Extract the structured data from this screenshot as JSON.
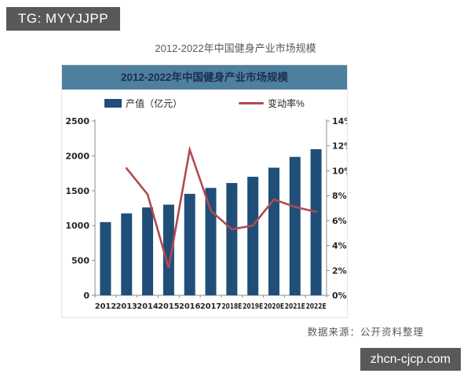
{
  "badge": {
    "label": "TG: MYYJJPP"
  },
  "page_title": "2012-2022年中国健身产业市场规模",
  "chart": {
    "header": "2012-2022年中国健身产业市场规模",
    "legend": [
      {
        "label": "产值（亿元）",
        "type": "bar"
      },
      {
        "label": "变动率%",
        "type": "line"
      }
    ]
  },
  "source_note": "数据来源：公开资料整理",
  "watermark": "zhcn-cjcp.com",
  "colors": {
    "bar": "#1f4e79",
    "line": "#b04a4e",
    "banner_bg": "#4e7f9e",
    "banner_text": "#1c2f4e",
    "badge_bg": "#58595b",
    "axis": "#8c8c8c"
  },
  "chart_data": {
    "type": "bar",
    "title": "2012-2022年中国健身产业市场规模",
    "categories": [
      "2012",
      "2013",
      "2014",
      "2015",
      "2016",
      "2017",
      "2018E",
      "2019E",
      "2020E",
      "2021E",
      "2022E"
    ],
    "series": [
      {
        "name": "产值（亿元）",
        "type": "bar",
        "axis": "left",
        "values": [
          1050,
          1175,
          1260,
          1300,
          1455,
          1540,
          1610,
          1700,
          1830,
          1985,
          2095
        ]
      },
      {
        "name": "变动率%",
        "type": "line",
        "axis": "right",
        "values": [
          null,
          10.2,
          8.1,
          2.2,
          11.7,
          6.8,
          5.3,
          5.6,
          7.7,
          7.1,
          6.7
        ]
      }
    ],
    "y_left": {
      "min": 0,
      "max": 2500,
      "step": 500,
      "suffix": ""
    },
    "y_right": {
      "min": 0,
      "max": 14,
      "step": 2,
      "suffix": "%"
    },
    "grid": false,
    "legend_position": "top",
    "xlabel": "",
    "ylabel_left": "产值（亿元）",
    "ylabel_right": "变动率%"
  }
}
